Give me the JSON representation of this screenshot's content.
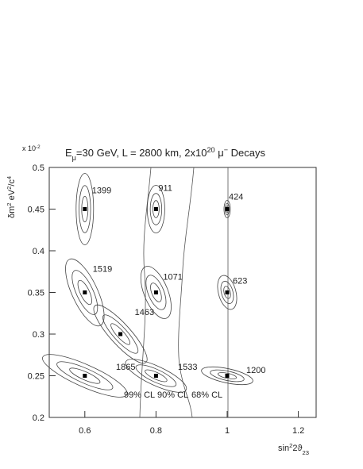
{
  "chart_data": {
    "type": "scatter",
    "title": [
      "E",
      "μ",
      "=30 GeV, L = 2800 km, 2x10",
      "20",
      " μ",
      "−",
      " Decays"
    ],
    "y_multiplier": [
      "x 10",
      "-2"
    ],
    "y_label": [
      "δm",
      "2",
      " eV",
      "2",
      "/c",
      "4"
    ],
    "x_label": [
      "sin",
      "2",
      "2ϑ",
      "23"
    ],
    "xlim": [
      0.5,
      1.25
    ],
    "xticks": [
      0.6,
      0.8,
      1,
      1.2
    ],
    "ylim": [
      0.2,
      0.5
    ],
    "yticks": [
      0.2,
      0.25,
      0.3,
      0.35,
      0.4,
      0.45,
      0.5
    ],
    "series": [
      {
        "color": "#000000",
        "x": [
          0.6,
          0.8,
          1.0,
          0.6,
          0.8,
          1.0,
          0.7,
          0.6,
          0.8,
          1.0
        ],
        "y": [
          0.45,
          0.45,
          0.45,
          0.35,
          0.35,
          0.35,
          0.3,
          0.25,
          0.25,
          0.25
        ],
        "point_labels": [
          "1399",
          "911",
          "424",
          "1519",
          "1071",
          "623",
          "1463",
          "1865",
          "1533",
          "1200"
        ]
      }
    ],
    "annotations": [
      "99% CL",
      "90% CL",
      "68% CL"
    ]
  }
}
